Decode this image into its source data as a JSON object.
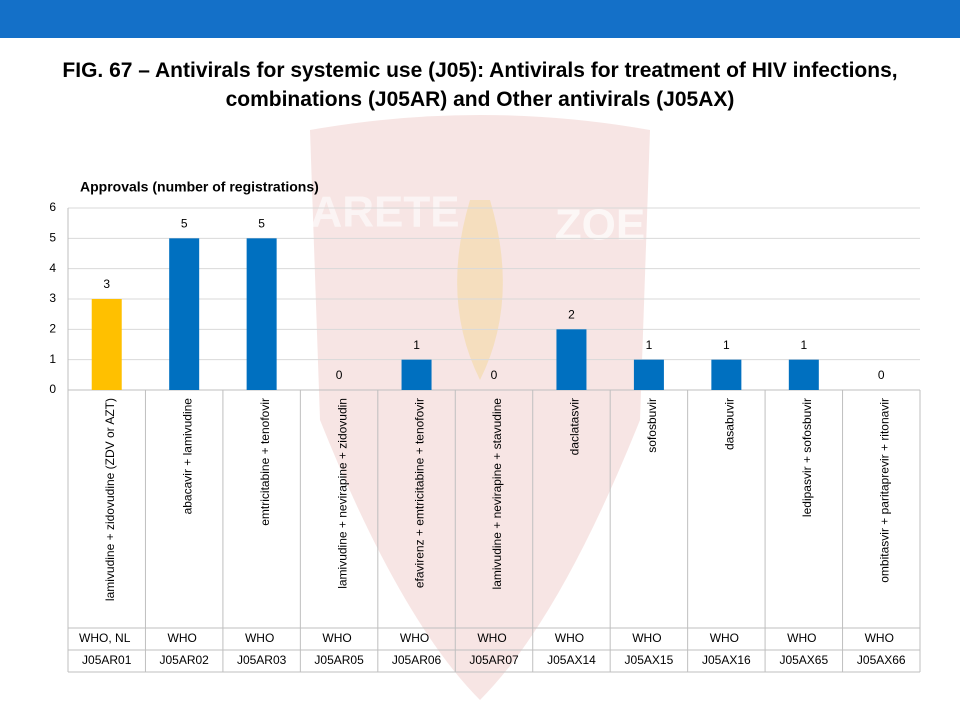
{
  "chart_data": {
    "type": "bar",
    "title": "FIG. 67 – Antivirals for systemic use (J05): Antivirals for treatment of HIV infections, combinations (J05AR) and Other antivirals (J05AX)",
    "subtitle": "Approvals (number of registrations)",
    "categories": [
      "lamivudine + zidovudine (ZDV or AZT)",
      "abacavir + lamivudine",
      "emtricitabine + tenofovir",
      "lamivudine + nevirapine + zidovudin",
      "efavirenz + emtricitabine + tenofovir",
      "lamivudine + nevirapine + stavudine",
      "daclatasvir",
      "sofosbuvir",
      "dasabuvir",
      "ledipasvir + sofosbuvir",
      "ombitasvir + paritaprevir + ritonavir"
    ],
    "sources": [
      "WHO, NL",
      "WHO",
      "WHO",
      "WHO",
      "WHO",
      "WHO",
      "WHO",
      "WHO",
      "WHO",
      "WHO",
      "WHO"
    ],
    "codes": [
      "J05AR01",
      "J05AR02",
      "J05AR03",
      "J05AR05",
      "J05AR06",
      "J05AR07",
      "J05AX14",
      "J05AX15",
      "J05AX16",
      "J05AX65",
      "J05AX66"
    ],
    "values": [
      3,
      5,
      5,
      0,
      1,
      0,
      2,
      1,
      1,
      1,
      0
    ],
    "colors": [
      "#ffc000",
      "#0070c0",
      "#0070c0",
      "#0070c0",
      "#0070c0",
      "#0070c0",
      "#0070c0",
      "#0070c0",
      "#0070c0",
      "#0070c0",
      "#0070c0"
    ],
    "ylim": [
      0,
      6
    ],
    "yticks": [
      0,
      1,
      2,
      3,
      4,
      5,
      6
    ],
    "grid": true
  },
  "watermark": {
    "left": "ARETE",
    "right": "ZOE"
  }
}
